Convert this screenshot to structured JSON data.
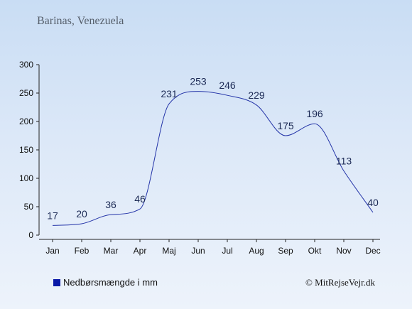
{
  "location_title": "Barinas, Venezuela",
  "legend_label": "Nedbørsmængde i mm",
  "copyright": "© MitRejseVejr.dk",
  "colors": {
    "line": "#2434a8",
    "axis": "#222222",
    "swatch": "#0a1aa8"
  },
  "chart_data": {
    "type": "line",
    "categories": [
      "Jan",
      "Feb",
      "Mar",
      "Apr",
      "Maj",
      "Jun",
      "Jul",
      "Aug",
      "Sep",
      "Okt",
      "Nov",
      "Dec"
    ],
    "series": [
      {
        "name": "Nedbørsmængde i mm",
        "values": [
          17,
          20,
          36,
          46,
          231,
          253,
          246,
          229,
          175,
          196,
          113,
          40
        ]
      }
    ],
    "ylim": [
      0,
      300
    ],
    "yticks": [
      0,
      50,
      100,
      150,
      200,
      250,
      300
    ],
    "grid": false,
    "legend": "bottom-left"
  }
}
